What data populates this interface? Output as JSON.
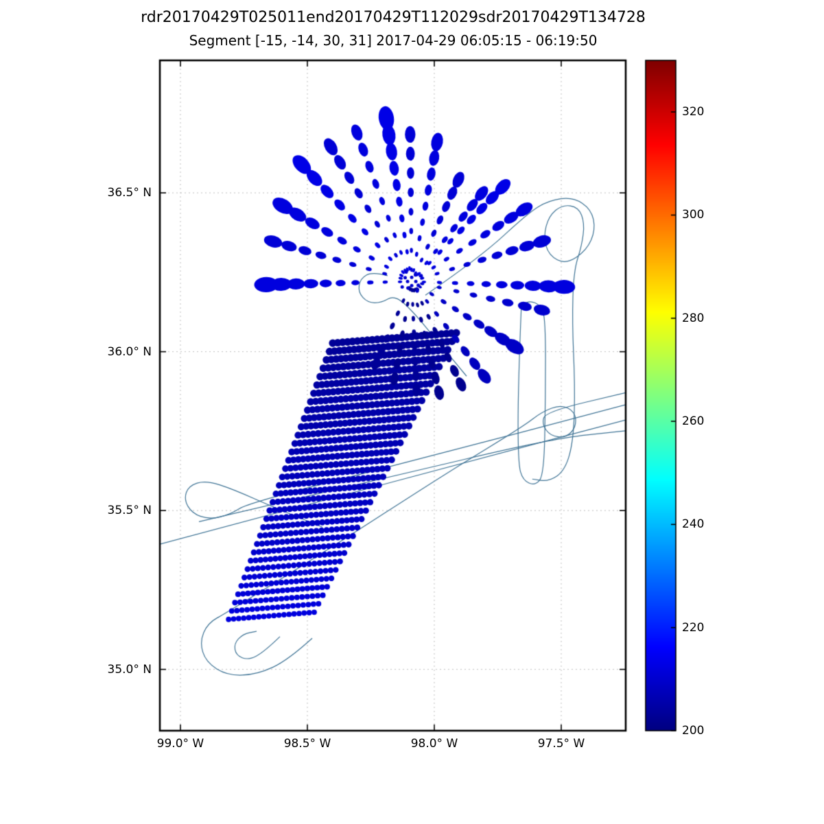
{
  "chart_data": {
    "type": "scatter",
    "title": "rdr20170429T025011end20170429T112029sdr20170429T134728",
    "subtitle": "Segment [-15, -14, 30, 31] 2017-04-29 06:05:15 - 06:19:50",
    "xlabel": "",
    "ylabel": "",
    "grid": true,
    "xlim": [
      -99.081,
      -97.246
    ],
    "ylim": [
      34.807,
      36.917
    ],
    "xticks": [
      {
        "value": -99.0,
        "label": "99.0° W"
      },
      {
        "value": -98.5,
        "label": "98.5° W"
      },
      {
        "value": -98.0,
        "label": "98.0° W"
      },
      {
        "value": -97.5,
        "label": "97.5° W"
      }
    ],
    "yticks": [
      {
        "value": 36.5,
        "label": "36.5° N"
      },
      {
        "value": 36.0,
        "label": "36.0° N"
      },
      {
        "value": 35.5,
        "label": "35.5° N"
      },
      {
        "value": 35.0,
        "label": "35.0° N"
      }
    ],
    "colorbar": {
      "min": 200,
      "max": 330,
      "ticks": [
        200,
        220,
        240,
        260,
        280,
        300,
        320
      ],
      "colormap": "jet"
    },
    "fan": {
      "center": [
        -98.089,
        36.221
      ],
      "center_cluster": {
        "n": 12,
        "value": 210
      },
      "rays": [
        {
          "end": [
            -98.662,
            36.211
          ],
          "size": 13,
          "value": 212,
          "n": 10
        },
        {
          "end": [
            -98.635,
            36.347
          ],
          "size": 10,
          "value": 211,
          "n": 9
        },
        {
          "end": [
            -98.597,
            36.459
          ],
          "size": 12,
          "value": 212,
          "n": 9
        },
        {
          "end": [
            -98.522,
            36.589
          ],
          "size": 12,
          "value": 213,
          "n": 9
        },
        {
          "end": [
            -98.408,
            36.645
          ],
          "size": 10,
          "value": 211,
          "n": 9
        },
        {
          "end": [
            -98.305,
            36.69
          ],
          "size": 9,
          "value": 212,
          "n": 9
        },
        {
          "end": [
            -98.189,
            36.735
          ],
          "size": 13,
          "value": 213,
          "n": 10
        },
        {
          "end": [
            -98.095,
            36.684
          ],
          "size": 9,
          "value": 211,
          "n": 8
        },
        {
          "end": [
            -97.989,
            36.66
          ],
          "size": 10,
          "value": 212,
          "n": 9
        },
        {
          "end": [
            -97.905,
            36.541
          ],
          "size": 9,
          "value": 211,
          "n": 8
        },
        {
          "end": [
            -97.814,
            36.498
          ],
          "size": 9,
          "value": 212,
          "n": 8
        },
        {
          "end": [
            -97.73,
            36.519
          ],
          "size": 10,
          "value": 213,
          "n": 9
        },
        {
          "end": [
            -97.646,
            36.448
          ],
          "size": 10,
          "value": 212,
          "n": 9
        },
        {
          "end": [
            -97.576,
            36.347
          ],
          "size": 10,
          "value": 211,
          "n": 9
        },
        {
          "end": [
            -97.489,
            36.204
          ],
          "size": 12,
          "value": 212,
          "n": 10
        },
        {
          "end": [
            -97.576,
            36.131
          ],
          "size": 9,
          "value": 210,
          "n": 8
        },
        {
          "end": [
            -97.684,
            36.016
          ],
          "size": 11,
          "value": 209,
          "n": 9
        },
        {
          "end": [
            -97.803,
            35.923
          ],
          "size": 9,
          "value": 208,
          "n": 8
        }
      ],
      "dark_rays": [
        {
          "end": [
            -97.895,
            35.897
          ],
          "size": 8,
          "value": 202,
          "n": 8
        },
        {
          "end": [
            -97.981,
            35.871
          ],
          "size": 8,
          "value": 202,
          "n": 8
        },
        {
          "end": [
            -98.07,
            35.88
          ],
          "size": 7,
          "value": 203,
          "n": 8
        },
        {
          "end": [
            -98.157,
            35.915
          ],
          "size": 7,
          "value": 202,
          "n": 7
        },
        {
          "end": [
            -98.23,
            35.962
          ],
          "size": 7,
          "value": 203,
          "n": 7
        }
      ]
    },
    "swath": {
      "origin": [
        -98.4,
        36.027
      ],
      "row_offset": [
        -0.01243,
        -0.02635
      ],
      "row_vector": [
        0.4865,
        0.0324
      ],
      "rows": 34,
      "dots_first_row": 26,
      "dots_decrement": 0.25,
      "length_shrink_per_row": 0.0093,
      "dot_radius_first": 5.6,
      "dot_radius_step": -0.05,
      "value_start": 203,
      "value_end": 212
    },
    "tracks": {
      "color": "#3d7294",
      "lines": [
        [
          [
            -98.035,
            36.178
          ],
          [
            -97.819,
            36.297
          ],
          [
            -97.63,
            36.437
          ],
          [
            -97.549,
            36.476
          ],
          [
            -97.454,
            36.487
          ],
          [
            -97.381,
            36.448
          ],
          [
            -97.365,
            36.383
          ],
          [
            -97.4,
            36.319
          ],
          [
            -97.481,
            36.275
          ],
          [
            -97.549,
            36.303
          ],
          [
            -97.57,
            36.362
          ],
          [
            -97.549,
            36.427
          ],
          [
            -97.495,
            36.463
          ],
          [
            -97.432,
            36.455
          ],
          [
            -97.408,
            36.405
          ],
          [
            -97.419,
            36.334
          ],
          [
            -97.451,
            36.254
          ],
          [
            -97.457,
            36.092
          ],
          [
            -97.446,
            35.897
          ],
          [
            -97.451,
            35.725
          ],
          [
            -97.484,
            35.627
          ],
          [
            -97.549,
            35.591
          ],
          [
            -97.614,
            35.599
          ]
        ],
        [
          [
            -97.657,
            36.146
          ],
          [
            -97.67,
            35.897
          ],
          [
            -97.67,
            35.649
          ],
          [
            -97.651,
            35.595
          ],
          [
            -97.603,
            35.578
          ],
          [
            -97.568,
            35.612
          ],
          [
            -97.562,
            35.854
          ],
          [
            -97.562,
            36.103
          ],
          [
            -97.581,
            36.146
          ],
          [
            -97.624,
            36.161
          ],
          [
            -97.657,
            36.146
          ]
        ],
        [
          [
            -99.081,
            35.394
          ],
          [
            -98.495,
            35.519
          ],
          [
            -97.819,
            35.664
          ],
          [
            -97.246,
            35.785
          ]
        ],
        [
          [
            -98.927,
            35.465
          ],
          [
            -98.224,
            35.595
          ],
          [
            -97.549,
            35.725
          ],
          [
            -97.246,
            35.751
          ]
        ],
        [
          [
            -98.441,
            35.448
          ],
          [
            -98.63,
            35.509
          ],
          [
            -98.792,
            35.567
          ],
          [
            -98.9,
            35.595
          ],
          [
            -98.968,
            35.578
          ],
          [
            -98.986,
            35.535
          ],
          [
            -98.954,
            35.491
          ],
          [
            -98.886,
            35.472
          ],
          [
            -98.805,
            35.487
          ],
          [
            -98.732,
            35.524
          ],
          [
            -98.089,
            35.655
          ],
          [
            -97.246,
            35.833
          ]
        ],
        [
          [
            -98.481,
            35.098
          ],
          [
            -98.576,
            35.029
          ],
          [
            -98.697,
            34.984
          ],
          [
            -98.814,
            34.98
          ],
          [
            -98.9,
            35.023
          ],
          [
            -98.924,
            35.087
          ],
          [
            -98.892,
            35.146
          ],
          [
            -98.819,
            35.178
          ],
          [
            -98.414,
            35.379
          ],
          [
            -97.954,
            35.617
          ],
          [
            -97.651,
            35.764
          ],
          [
            -97.576,
            35.811
          ],
          [
            -97.5,
            35.833
          ],
          [
            -97.446,
            35.811
          ],
          [
            -97.441,
            35.764
          ],
          [
            -97.481,
            35.729
          ],
          [
            -97.543,
            35.735
          ],
          [
            -97.576,
            35.772
          ],
          [
            -97.562,
            35.811
          ],
          [
            -97.246,
            35.871
          ]
        ],
        [
          [
            -98.608,
            35.103
          ],
          [
            -98.67,
            35.055
          ],
          [
            -98.732,
            35.029
          ],
          [
            -98.781,
            35.044
          ],
          [
            -98.789,
            35.081
          ],
          [
            -98.754,
            35.111
          ],
          [
            -98.7,
            35.12
          ]
        ],
        [
          [
            -98.184,
            36.239
          ],
          [
            -98.243,
            36.252
          ],
          [
            -98.292,
            36.23
          ],
          [
            -98.3,
            36.187
          ],
          [
            -98.262,
            36.154
          ],
          [
            -98.208,
            36.154
          ],
          [
            -98.157,
            36.178
          ],
          [
            -98.089,
            36.131
          ],
          [
            -97.981,
            36.027
          ],
          [
            -97.873,
            35.923
          ]
        ]
      ]
    }
  }
}
